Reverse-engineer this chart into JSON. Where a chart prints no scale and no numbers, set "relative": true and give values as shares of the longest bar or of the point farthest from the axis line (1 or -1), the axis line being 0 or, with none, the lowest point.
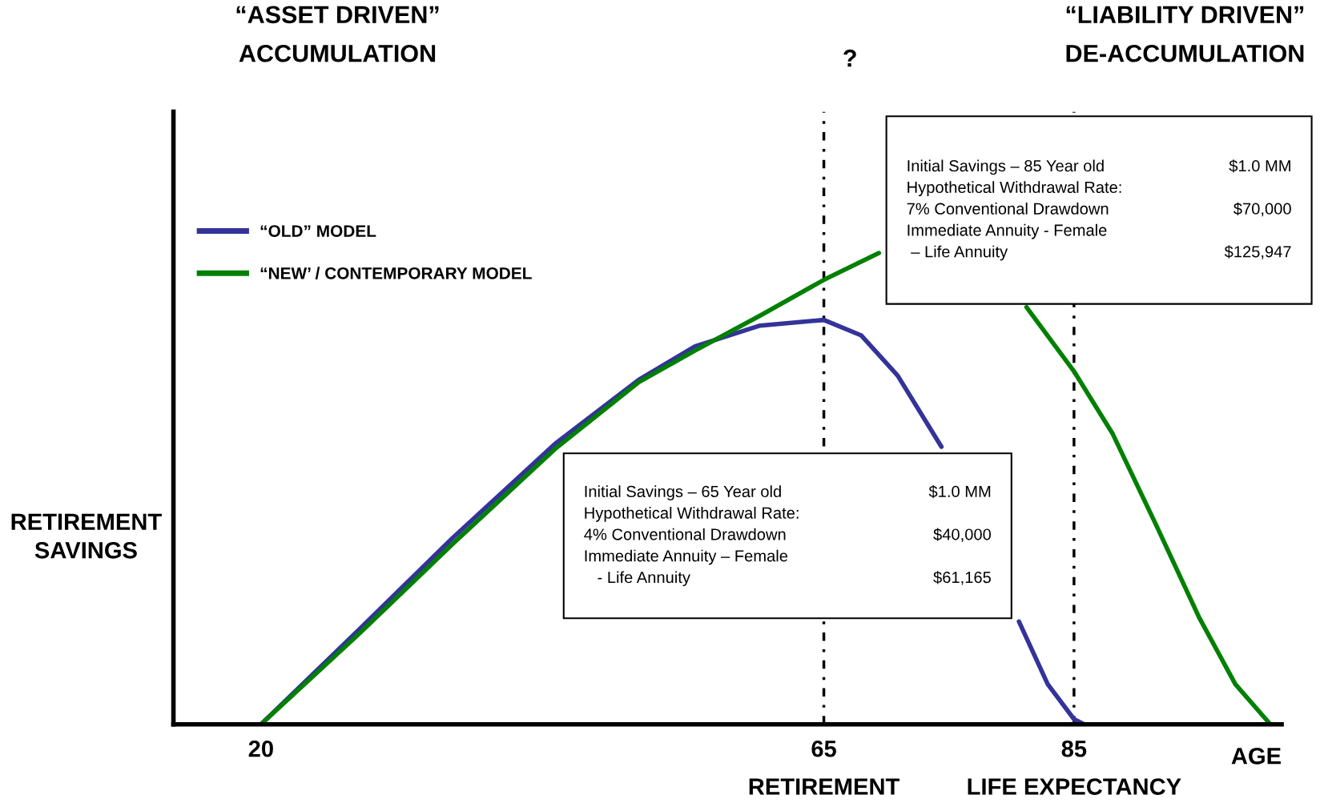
{
  "chart_data": {
    "type": "line",
    "relative": true,
    "ylabel": "RETIREMENT\nSAVINGS",
    "xlabel": "AGE",
    "x": [
      20,
      27.8,
      35.3,
      43.5,
      50.2,
      54.7,
      59.9,
      65,
      68,
      70.9,
      74.4,
      77.3,
      80.6,
      82.9,
      85,
      85.8
    ],
    "series": [
      {
        "name": "“OLD” MODEL",
        "color": "#333399",
        "values": [
          0,
          0.2,
          0.395,
          0.595,
          0.731,
          0.802,
          0.846,
          0.858,
          0.825,
          0.74,
          0.589,
          null,
          0.218,
          0.085,
          0.011,
          0
        ]
      },
      {
        "name": "“NEW’ / CONTEMPORARY MODEL",
        "color": "#008000",
        "x": [
          20,
          27.8,
          35.3,
          43.5,
          50.2,
          54.7,
          59.9,
          65,
          69.4,
          75,
          81.2,
          85,
          88.1,
          91.6,
          95,
          97.9,
          100.7
        ],
        "values": [
          0,
          0.191,
          0.382,
          0.584,
          0.726,
          0.793,
          0.867,
          0.943,
          1.0,
          null,
          0.885,
          0.749,
          0.616,
          0.421,
          0.227,
          0.085,
          0
        ]
      }
    ],
    "xlim": [
      13,
      101.6
    ],
    "xticks": [
      20,
      65,
      85
    ],
    "ref_lines": [
      {
        "axis": "x",
        "value": 65,
        "label": "RETIREMENT",
        "color": "#000000",
        "line_style": "dashdot"
      },
      {
        "axis": "x",
        "value": 85,
        "label": "LIFE EXPECTANCY",
        "color": "#000000",
        "line_style": "dashdot"
      }
    ],
    "annotations": [
      "“ASSET DRIVEN”\nACCUMULATION",
      "?",
      "“LIABILITY DRIVEN”\nDE-ACCUMULATION",
      "Initial Savings – 85 Year old\nHypothetical Withdrawal Rate:\n7% Conventional Drawdown\nImmediate Annuity - Female\n – Life Annuity",
      "$1.0 MM\n\n$70,000\n\n$125,947",
      "Initial Savings – 65 Year old\nHypothetical Withdrawal Rate:\n4% Conventional Drawdown\nImmediate Annuity – Female\n   - Life Annuity",
      "$1.0 MM\n\n$40,000\n\n$61,165"
    ],
    "legend": "top left",
    "grid": false,
    "marker": "none",
    "line_style": "solid"
  }
}
